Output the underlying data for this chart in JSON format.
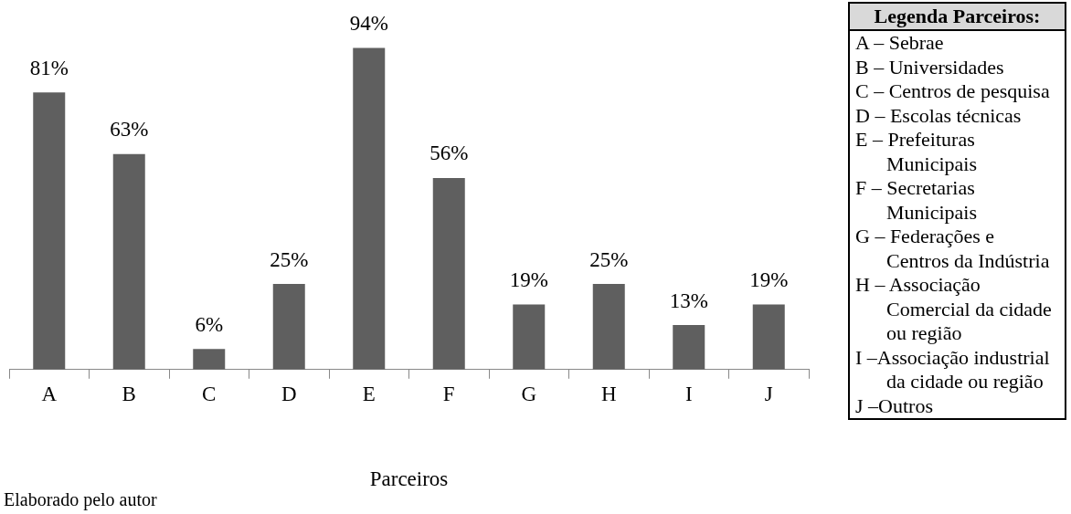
{
  "chart_data": [
    {
      "type": "bar",
      "xlabel": "Parceiros",
      "categories": [
        "A",
        "B",
        "C",
        "D",
        "E",
        "F",
        "G",
        "H",
        "I",
        "J"
      ],
      "values": [
        81,
        63,
        6,
        25,
        94,
        56,
        19,
        25,
        13,
        19
      ],
      "value_labels": [
        "81%",
        "63%",
        "6%",
        "25%",
        "94%",
        "56%",
        "19%",
        "25%",
        "13%",
        "19%"
      ],
      "color": "#5f5f5f",
      "tick_labels": "x",
      "grid": false,
      "legend": false,
      "annotations": [
        "Elaborado pelo autor"
      ]
    },
    {
      "type": "other",
      "title": "Legenda Parceiros:",
      "annotations": [
        "A – Sebrae",
        "B – Universidades",
        "C – Centros de pesquisa",
        "D – Escolas técnicas",
        "E – Prefeituras Municipais",
        "F – Secretarias Municipais",
        "G – Federações e Centros da Indústria",
        "H – Associação Comercial da cidade ou região",
        "I –Associação industrial da cidade ou região",
        "J –Outros"
      ]
    }
  ]
}
